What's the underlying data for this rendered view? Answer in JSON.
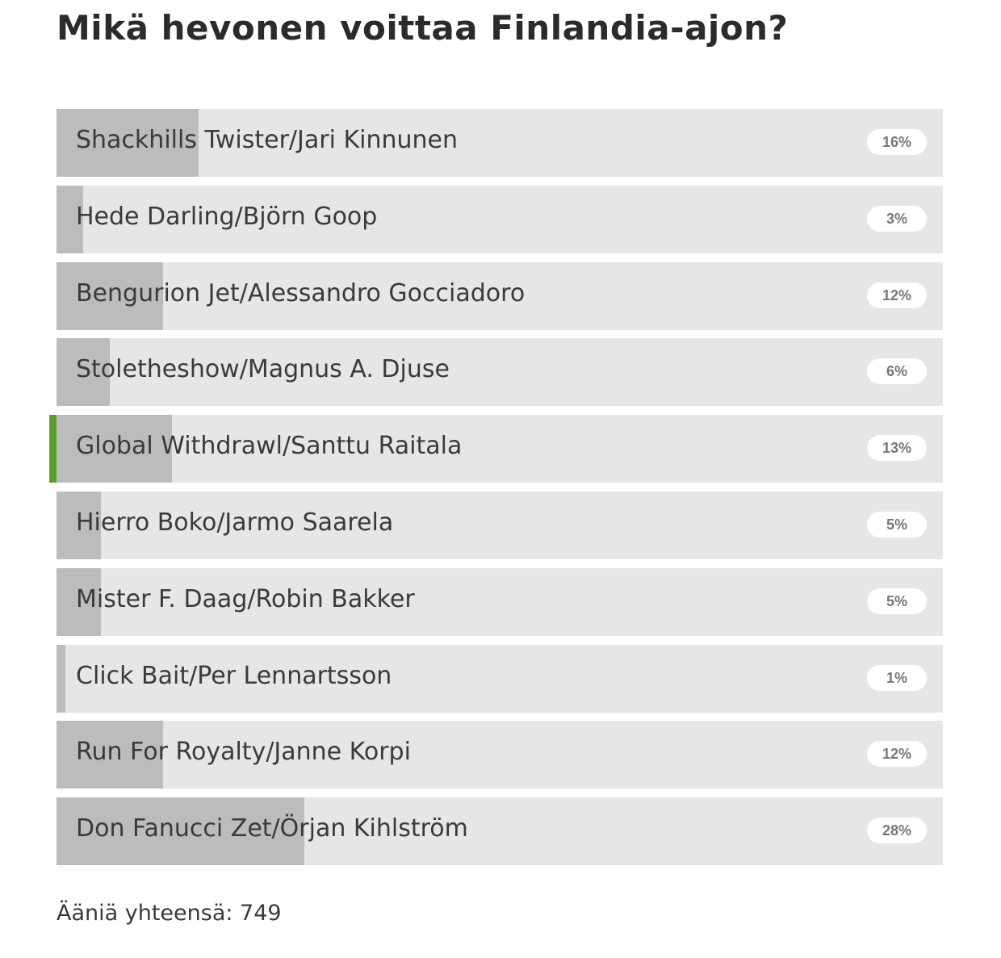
{
  "title": "Mikä hevonen voittaa Finlandia-ajon?",
  "accent_color": "#5a9e2a",
  "options": [
    {
      "label": "Shackhills Twister/Jari Kinnunen",
      "percent": 16,
      "percent_label": "16%"
    },
    {
      "label": "Hede Darling/Björn Goop",
      "percent": 3,
      "percent_label": "3%"
    },
    {
      "label": "Bengurion Jet/Alessandro Gocciadoro",
      "percent": 12,
      "percent_label": "12%"
    },
    {
      "label": "Stoletheshow/Magnus A. Djuse",
      "percent": 6,
      "percent_label": "6%"
    },
    {
      "label": "Global Withdrawl/Santtu Raitala",
      "percent": 13,
      "percent_label": "13%",
      "selected": true
    },
    {
      "label": "Hierro Boko/Jarmo Saarela",
      "percent": 5,
      "percent_label": "5%"
    },
    {
      "label": "Mister F. Daag/Robin Bakker",
      "percent": 5,
      "percent_label": "5%"
    },
    {
      "label": "Click Bait/Per Lennartsson",
      "percent": 1,
      "percent_label": "1%"
    },
    {
      "label": "Run For Royalty/Janne Korpi",
      "percent": 12,
      "percent_label": "12%"
    },
    {
      "label": "Don Fanucci Zet/Örjan Kihlström",
      "percent": 28,
      "percent_label": "28%"
    }
  ],
  "total_label": "Ääniä yhteensä: 749"
}
